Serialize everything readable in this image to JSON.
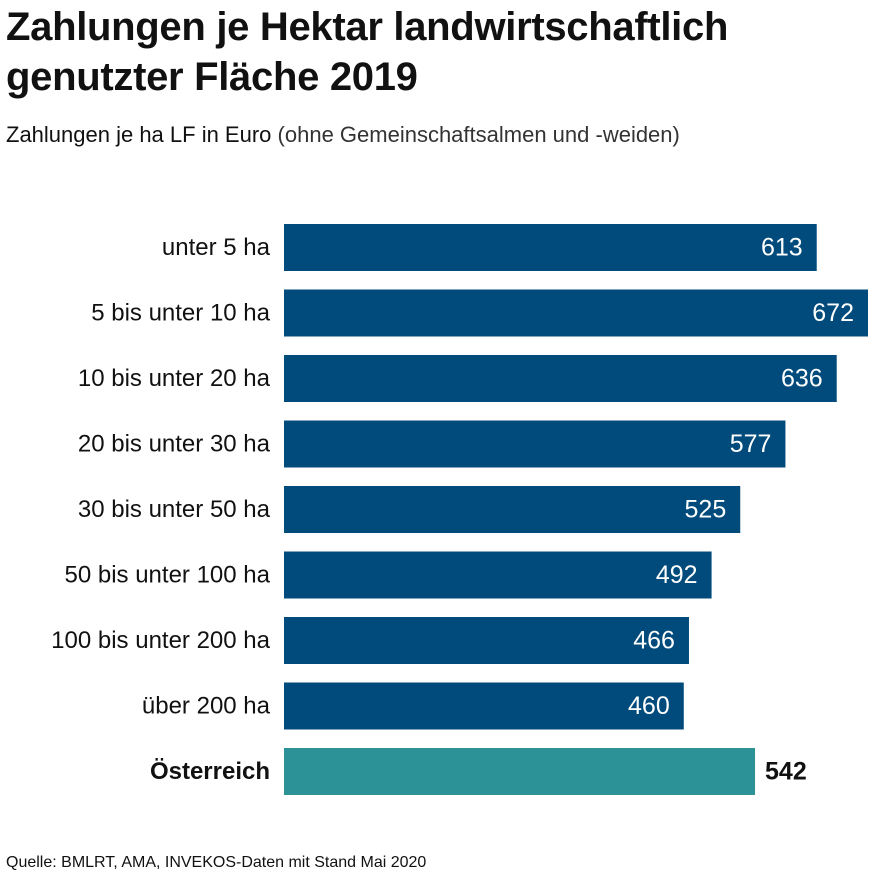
{
  "title": "Zahlungen je Hektar landwirtschaftlich genutzter Fläche 2019",
  "subtitle": {
    "main": "Zahlungen je ha LF in Euro",
    "note": "(ohne Gemeinschaftsalmen und -weiden)"
  },
  "source": "Quelle: BMLRT, AMA, INVEKOS-Daten mit Stand Mai 2020",
  "colors": {
    "bar": "#004b7b",
    "total_bar": "#2c9298",
    "bar_label": "#ffffff",
    "total_label": "#111111"
  },
  "chart_data": {
    "type": "bar",
    "orientation": "horizontal",
    "categories": [
      "unter 5 ha",
      "5 bis unter 10 ha",
      "10 bis unter 20 ha",
      "20 bis unter 30 ha",
      "30 bis unter 50 ha",
      "50 bis unter 100 ha",
      "100 bis unter 200 ha",
      "über 200 ha",
      "Österreich"
    ],
    "values": [
      613,
      672,
      636,
      577,
      525,
      492,
      466,
      460,
      542
    ],
    "highlight": "Österreich",
    "xlim": [
      0,
      672
    ],
    "grid": false,
    "legend": "none",
    "title": "Zahlungen je Hektar landwirtschaftlich genutzter Fläche 2019",
    "xlabel": "",
    "ylabel": ""
  }
}
